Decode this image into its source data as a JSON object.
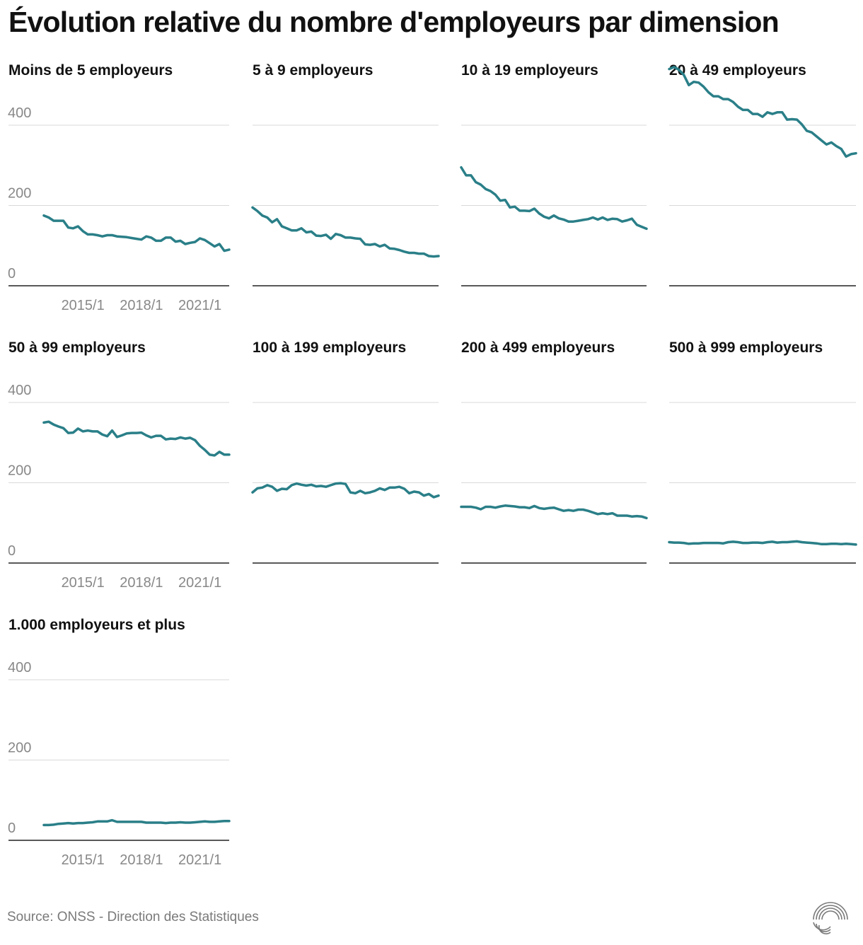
{
  "title": "Évolution relative du nombre d'employeurs par dimension",
  "source": "Source: ONSS - Direction des Statistiques",
  "colors": {
    "line": "#2a7f88",
    "grid": "#d9d9d9",
    "axis": "#222222",
    "tick": "#888888",
    "text": "#111111"
  },
  "icons": {
    "logo": "logo-icon"
  },
  "chart_data": [
    {
      "type": "line",
      "title": "Moins de 5 employeurs",
      "ylim": [
        0,
        450
      ],
      "yticks": [
        "0",
        "200",
        "400"
      ],
      "xticks": [
        "2015/1",
        "2018/1",
        "2021/1"
      ],
      "show_y_labels": true,
      "show_x_labels": true,
      "x_start": "2013/1",
      "values": [
        175,
        170,
        162,
        162,
        162,
        145,
        143,
        148,
        136,
        128,
        128,
        126,
        123,
        126,
        126,
        123,
        122,
        121,
        119,
        117,
        115,
        123,
        120,
        112,
        112,
        120,
        120,
        110,
        112,
        104,
        107,
        109,
        118,
        114,
        106,
        98,
        104,
        87,
        90
      ]
    },
    {
      "type": "line",
      "title": "5 à 9 employeurs",
      "ylim": [
        0,
        450
      ],
      "yticks": [
        "0",
        "200",
        "400"
      ],
      "xticks": [
        "2015/1",
        "2018/1",
        "2021/1"
      ],
      "show_y_labels": false,
      "show_x_labels": false,
      "x_start": "2013/1",
      "values": [
        195,
        186,
        175,
        170,
        158,
        166,
        148,
        143,
        138,
        138,
        143,
        133,
        135,
        125,
        124,
        127,
        117,
        129,
        126,
        120,
        120,
        118,
        117,
        103,
        102,
        104,
        98,
        102,
        93,
        92,
        89,
        85,
        82,
        82,
        80,
        80,
        74,
        73,
        74
      ]
    },
    {
      "type": "line",
      "title": "10 à 19 employeurs",
      "ylim": [
        0,
        450
      ],
      "yticks": [
        "0",
        "200",
        "400"
      ],
      "xticks": [
        "2015/1",
        "2018/1",
        "2021/1"
      ],
      "show_y_labels": false,
      "show_x_labels": false,
      "x_start": "2013/1",
      "values": [
        295,
        275,
        275,
        258,
        252,
        241,
        236,
        227,
        212,
        214,
        195,
        197,
        187,
        187,
        186,
        192,
        180,
        172,
        168,
        175,
        168,
        165,
        160,
        160,
        162,
        164,
        166,
        170,
        165,
        170,
        164,
        167,
        166,
        160,
        163,
        167,
        152,
        147,
        142
      ]
    },
    {
      "type": "line",
      "title": "20 à 49 employeurs",
      "ylim": [
        0,
        450
      ],
      "yticks": [
        "0",
        "200",
        "400"
      ],
      "xticks": [
        "2015/1",
        "2018/1",
        "2021/1"
      ],
      "show_y_labels": false,
      "show_x_labels": false,
      "x_start": "2013/1",
      "values": [
        540,
        545,
        538,
        525,
        500,
        508,
        506,
        496,
        482,
        472,
        472,
        465,
        465,
        458,
        446,
        438,
        438,
        428,
        428,
        421,
        432,
        428,
        432,
        432,
        414,
        415,
        414,
        402,
        386,
        382,
        372,
        362,
        352,
        357,
        348,
        341,
        322,
        328,
        330
      ]
    },
    {
      "type": "line",
      "title": "50 à 99 employeurs",
      "ylim": [
        0,
        450
      ],
      "yticks": [
        "0",
        "200",
        "400"
      ],
      "xticks": [
        "2015/1",
        "2018/1",
        "2021/1"
      ],
      "show_y_labels": true,
      "show_x_labels": true,
      "x_start": "2013/1",
      "values": [
        350,
        352,
        345,
        340,
        336,
        324,
        325,
        335,
        328,
        330,
        328,
        328,
        320,
        316,
        330,
        314,
        318,
        323,
        324,
        324,
        325,
        318,
        313,
        317,
        317,
        308,
        310,
        309,
        313,
        310,
        312,
        306,
        292,
        282,
        270,
        268,
        277,
        270,
        270
      ]
    },
    {
      "type": "line",
      "title": "100 à 199 employeurs",
      "ylim": [
        0,
        450
      ],
      "yticks": [
        "0",
        "200",
        "400"
      ],
      "xticks": [
        "2015/1",
        "2018/1",
        "2021/1"
      ],
      "show_y_labels": false,
      "show_x_labels": false,
      "x_start": "2013/1",
      "values": [
        176,
        186,
        188,
        194,
        190,
        180,
        185,
        184,
        194,
        198,
        195,
        193,
        195,
        191,
        192,
        190,
        194,
        198,
        199,
        197,
        176,
        174,
        180,
        174,
        176,
        180,
        186,
        182,
        188,
        188,
        190,
        185,
        174,
        178,
        176,
        168,
        172,
        164,
        168
      ]
    },
    {
      "type": "line",
      "title": "200 à 499 employeurs",
      "ylim": [
        0,
        450
      ],
      "yticks": [
        "0",
        "200",
        "400"
      ],
      "xticks": [
        "2015/1",
        "2018/1",
        "2021/1"
      ],
      "show_y_labels": false,
      "show_x_labels": false,
      "x_start": "2013/1",
      "values": [
        140,
        140,
        140,
        138,
        134,
        140,
        140,
        138,
        141,
        143,
        142,
        141,
        139,
        139,
        137,
        142,
        137,
        135,
        137,
        138,
        134,
        130,
        132,
        130,
        133,
        133,
        130,
        126,
        122,
        124,
        122,
        124,
        118,
        118,
        118,
        116,
        117,
        116,
        112
      ]
    },
    {
      "type": "line",
      "title": "500 à 999 employeurs",
      "ylim": [
        0,
        450
      ],
      "yticks": [
        "0",
        "200",
        "400"
      ],
      "xticks": [
        "2015/1",
        "2018/1",
        "2021/1"
      ],
      "show_y_labels": false,
      "show_x_labels": false,
      "x_start": "2013/1",
      "values": [
        52,
        51,
        51,
        50,
        48,
        49,
        49,
        50,
        50,
        50,
        50,
        49,
        52,
        53,
        52,
        50,
        50,
        51,
        51,
        50,
        52,
        53,
        51,
        52,
        52,
        53,
        54,
        52,
        51,
        50,
        49,
        47,
        47,
        48,
        48,
        47,
        48,
        47,
        46
      ]
    },
    {
      "type": "line",
      "title": "1.000 employeurs et plus",
      "ylim": [
        0,
        450
      ],
      "yticks": [
        "0",
        "200",
        "400"
      ],
      "xticks": [
        "2015/1",
        "2018/1",
        "2021/1"
      ],
      "show_y_labels": true,
      "show_x_labels": true,
      "x_start": "2013/1",
      "values": [
        38,
        38,
        39,
        41,
        42,
        43,
        42,
        43,
        43,
        44,
        45,
        47,
        47,
        47,
        50,
        46,
        46,
        46,
        46,
        46,
        46,
        44,
        44,
        44,
        44,
        43,
        44,
        44,
        45,
        44,
        44,
        45,
        46,
        47,
        46,
        46,
        47,
        48,
        48
      ]
    }
  ]
}
